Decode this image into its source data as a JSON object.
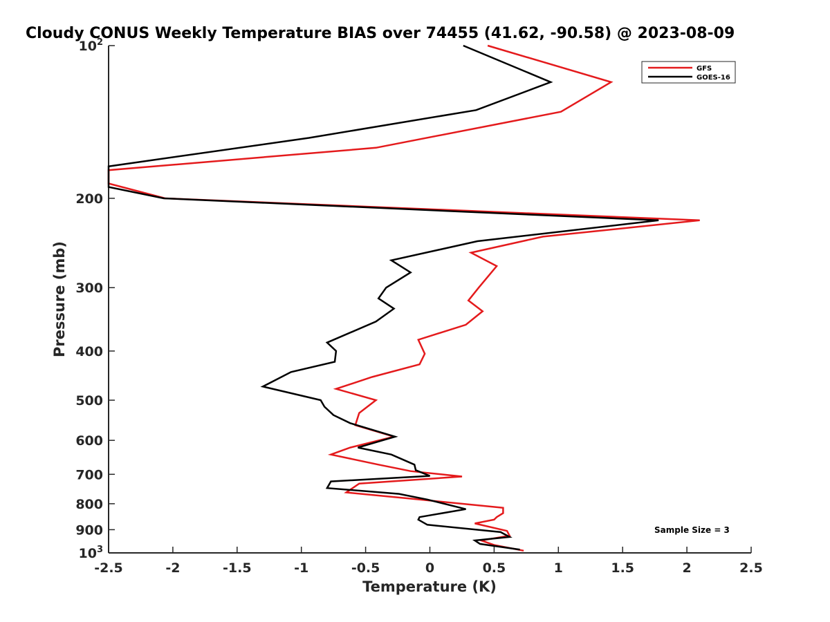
{
  "chart_data": {
    "type": "line",
    "title": "Cloudy CONUS Weekly Temperature BIAS over 74455 (41.62, -90.58) @ 2023-08-09",
    "xlabel": "Temperature (K)",
    "ylabel": "Pressure (mb)",
    "xlim": [
      -2.5,
      2.5
    ],
    "ylim": [
      100,
      1000
    ],
    "y_scale": "log",
    "y_reversed": true,
    "grid": false,
    "legend_position": "top-right",
    "x_ticks": [
      {
        "value": -2.5,
        "label": "-2.5"
      },
      {
        "value": -2,
        "label": "-2"
      },
      {
        "value": -1.5,
        "label": "-1.5"
      },
      {
        "value": -1,
        "label": "-1"
      },
      {
        "value": -0.5,
        "label": "-0.5"
      },
      {
        "value": 0,
        "label": "0"
      },
      {
        "value": 0.5,
        "label": "0.5"
      },
      {
        "value": 1,
        "label": "1"
      },
      {
        "value": 1.5,
        "label": "1.5"
      },
      {
        "value": 2,
        "label": "2"
      },
      {
        "value": 2.5,
        "label": "2.5"
      }
    ],
    "y_ticks": [
      {
        "value": 100,
        "label": "10",
        "sup": "2"
      },
      {
        "value": 200,
        "label": "200",
        "sup": ""
      },
      {
        "value": 300,
        "label": "300",
        "sup": ""
      },
      {
        "value": 400,
        "label": "400",
        "sup": ""
      },
      {
        "value": 500,
        "label": "500",
        "sup": ""
      },
      {
        "value": 600,
        "label": "600",
        "sup": ""
      },
      {
        "value": 700,
        "label": "700",
        "sup": ""
      },
      {
        "value": 800,
        "label": "800",
        "sup": ""
      },
      {
        "value": 900,
        "label": "900",
        "sup": ""
      },
      {
        "value": 1000,
        "label": "10",
        "sup": "3"
      }
    ],
    "annotation": "Sample Size = 3",
    "series": [
      {
        "name": "GFS",
        "color": "#e41a1c",
        "points": [
          [
            0.45,
            100
          ],
          [
            1.41,
            118
          ],
          [
            1.02,
            135
          ],
          [
            -0.42,
            159
          ],
          [
            -2.5,
            176
          ],
          [
            -2.5,
            187
          ],
          [
            -2.06,
            200
          ],
          [
            2.1,
            221
          ],
          [
            0.88,
            238
          ],
          [
            0.32,
            256
          ],
          [
            0.52,
            272
          ],
          [
            0.38,
            300
          ],
          [
            0.3,
            318
          ],
          [
            0.41,
            334
          ],
          [
            0.28,
            355
          ],
          [
            -0.09,
            380
          ],
          [
            -0.04,
            405
          ],
          [
            -0.08,
            425
          ],
          [
            -0.45,
            450
          ],
          [
            -0.73,
            475
          ],
          [
            -0.42,
            500
          ],
          [
            -0.55,
            530
          ],
          [
            -0.58,
            560
          ],
          [
            -0.28,
            590
          ],
          [
            -0.62,
            620
          ],
          [
            -0.77,
            640
          ],
          [
            -0.4,
            670
          ],
          [
            -0.15,
            690
          ],
          [
            0.25,
            707
          ],
          [
            -0.55,
            730
          ],
          [
            -0.65,
            760
          ],
          [
            -0.08,
            785
          ],
          [
            0.57,
            815
          ],
          [
            0.57,
            835
          ],
          [
            0.52,
            850
          ],
          [
            0.5,
            860
          ],
          [
            0.35,
            875
          ],
          [
            0.6,
            905
          ],
          [
            0.62,
            925
          ],
          [
            0.4,
            945
          ],
          [
            0.5,
            965
          ],
          [
            0.73,
            990
          ]
        ]
      },
      {
        "name": "GOES-16",
        "color": "#000000",
        "points": [
          [
            0.26,
            100
          ],
          [
            0.94,
            118
          ],
          [
            0.36,
            134
          ],
          [
            -0.94,
            152
          ],
          [
            -2.5,
            173
          ],
          [
            -2.5,
            190
          ],
          [
            -2.07,
            200
          ],
          [
            1.78,
            221
          ],
          [
            0.37,
            243
          ],
          [
            -0.3,
            265
          ],
          [
            -0.15,
            280
          ],
          [
            -0.34,
            300
          ],
          [
            -0.4,
            315
          ],
          [
            -0.28,
            330
          ],
          [
            -0.42,
            350
          ],
          [
            -0.8,
            385
          ],
          [
            -0.73,
            400
          ],
          [
            -0.74,
            420
          ],
          [
            -1.08,
            440
          ],
          [
            -1.3,
            470
          ],
          [
            -0.85,
            500
          ],
          [
            -0.82,
            515
          ],
          [
            -0.75,
            535
          ],
          [
            -0.62,
            555
          ],
          [
            -0.27,
            590
          ],
          [
            -0.56,
            620
          ],
          [
            -0.3,
            640
          ],
          [
            -0.12,
            670
          ],
          [
            -0.11,
            687
          ],
          [
            0.0,
            705
          ],
          [
            -0.77,
            723
          ],
          [
            -0.8,
            745
          ],
          [
            -0.24,
            765
          ],
          [
            -0.02,
            785
          ],
          [
            0.28,
            820
          ],
          [
            -0.08,
            850
          ],
          [
            -0.09,
            860
          ],
          [
            -0.02,
            880
          ],
          [
            0.55,
            910
          ],
          [
            0.62,
            930
          ],
          [
            0.35,
            945
          ],
          [
            0.39,
            960
          ],
          [
            0.7,
            985
          ]
        ]
      }
    ]
  }
}
